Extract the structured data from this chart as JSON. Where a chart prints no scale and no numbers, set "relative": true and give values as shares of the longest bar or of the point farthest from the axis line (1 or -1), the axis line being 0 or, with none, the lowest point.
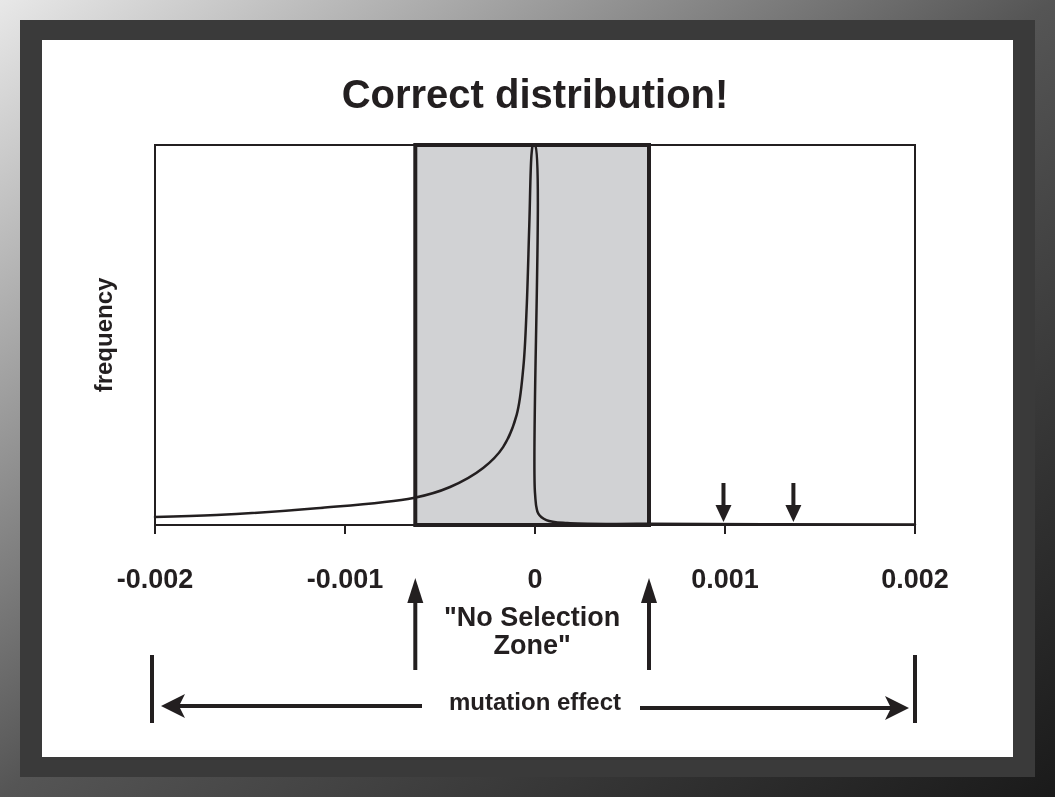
{
  "chart_data": {
    "type": "line",
    "title": "Correct distribution!",
    "xlabel": "mutation effect",
    "ylabel": "frequency",
    "relative": true,
    "xlim": [
      -0.002,
      0.002
    ],
    "xticks": [
      -0.002,
      -0.001,
      0,
      0.001,
      0.002
    ],
    "tick_labels": "x",
    "grid": false,
    "marker": "none",
    "line_style": "solid",
    "series": [
      {
        "color": "#231f20",
        "x": [
          -0.002,
          -0.001677,
          -0.00115,
          -0.00064,
          -0.000447,
          -0.000273,
          -0.000168,
          -9.65e-05,
          -6.14e-05,
          -4.4e-05,
          -3e-05,
          -1.75e-05,
          -1e-05,
          0,
          0,
          1.75e-05,
          6e-05,
          0.00017,
          0.0006,
          0.002
        ],
        "values": [
          0.021,
          0.026,
          0.044,
          0.071,
          0.1,
          0.15,
          0.205,
          0.29,
          0.415,
          0.57,
          0.79,
          0.98,
          1,
          1,
          0.084,
          0.03,
          0.013,
          0.005,
          0.003,
          0.001
        ]
      }
    ],
    "bands": [
      {
        "axis": "x",
        "from": -0.00063,
        "to": 0.0006,
        "label": "\"No Selection Zone\"",
        "color": "#d1d2d4"
      }
    ]
  }
}
